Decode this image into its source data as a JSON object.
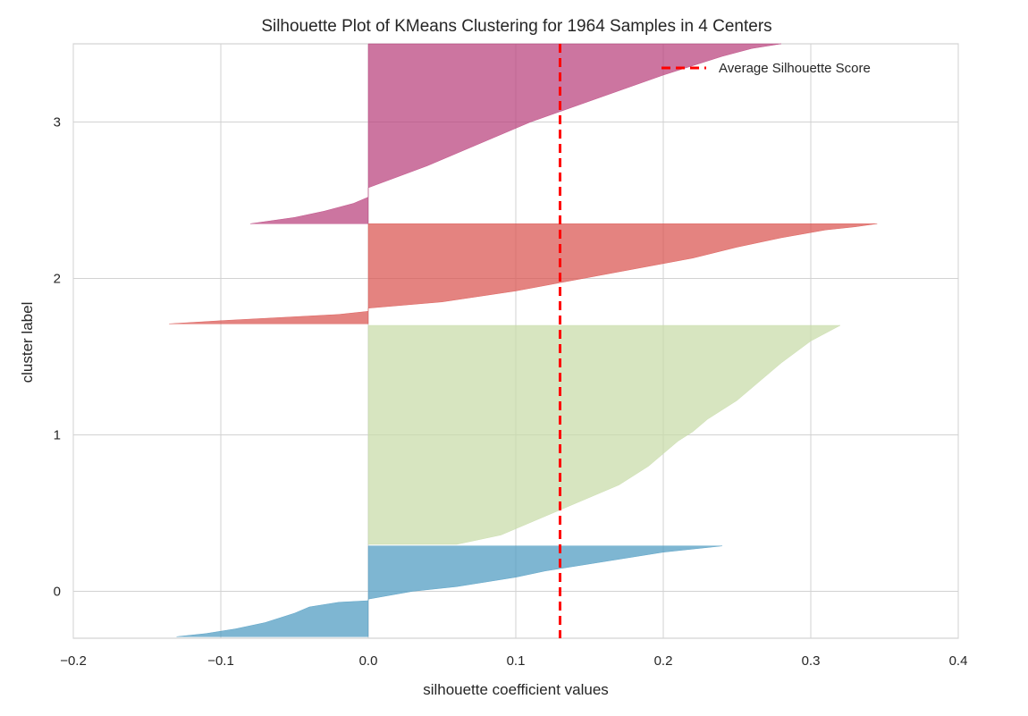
{
  "chart_data": {
    "type": "area",
    "title": "Silhouette Plot of KMeans Clustering for 1964 Samples in 4 Centers",
    "xlabel": "silhouette coefficient values",
    "ylabel": "cluster label",
    "xlim": [
      -0.2,
      0.4
    ],
    "ylim": [
      -0.3,
      3.5
    ],
    "x_ticks": [
      -0.2,
      -0.1,
      0.0,
      0.1,
      0.2,
      0.3,
      0.4
    ],
    "x_tick_labels": [
      "−0.2",
      "−0.1",
      "0.0",
      "0.1",
      "0.2",
      "0.3",
      "0.4"
    ],
    "y_ticks": [
      0,
      1,
      2,
      3
    ],
    "y_tick_labels": [
      "0",
      "1",
      "2",
      "3"
    ],
    "grid": true,
    "legend_position": "top-right",
    "average_silhouette_score": 0.13,
    "average_line": {
      "label": "Average Silhouette Score",
      "color": "#ff0000"
    },
    "series": [
      {
        "name": "0",
        "color": "#4c9ac0",
        "y_range": [
          -0.29,
          0.29
        ],
        "profile_x": [
          -0.13,
          -0.11,
          -0.09,
          -0.07,
          -0.05,
          -0.04,
          -0.02,
          0.0,
          0.0,
          0.03,
          0.06,
          0.08,
          0.1,
          0.12,
          0.14,
          0.16,
          0.18,
          0.2,
          0.22,
          0.24
        ],
        "profile_y": [
          -0.29,
          -0.27,
          -0.24,
          -0.2,
          -0.14,
          -0.1,
          -0.07,
          -0.06,
          -0.05,
          0.0,
          0.03,
          0.06,
          0.09,
          0.13,
          0.16,
          0.19,
          0.22,
          0.25,
          0.27,
          0.29
        ]
      },
      {
        "name": "1",
        "color": "#c7dba8",
        "y_range": [
          0.3,
          1.7
        ],
        "profile_x": [
          0.06,
          0.09,
          0.11,
          0.13,
          0.15,
          0.17,
          0.18,
          0.19,
          0.2,
          0.21,
          0.22,
          0.23,
          0.24,
          0.25,
          0.26,
          0.27,
          0.28,
          0.29,
          0.3,
          0.32
        ],
        "profile_y": [
          0.3,
          0.36,
          0.44,
          0.52,
          0.6,
          0.68,
          0.74,
          0.8,
          0.88,
          0.96,
          1.02,
          1.1,
          1.16,
          1.22,
          1.3,
          1.38,
          1.46,
          1.53,
          1.6,
          1.7
        ]
      },
      {
        "name": "2",
        "color": "#d9534f",
        "y_range": [
          1.71,
          2.35
        ],
        "profile_x": [
          -0.135,
          -0.1,
          -0.06,
          -0.02,
          0.0,
          0.0,
          0.05,
          0.1,
          0.14,
          0.18,
          0.22,
          0.25,
          0.28,
          0.31,
          0.33,
          0.345
        ],
        "profile_y": [
          1.71,
          1.73,
          1.75,
          1.77,
          1.79,
          1.81,
          1.85,
          1.92,
          1.99,
          2.06,
          2.13,
          2.2,
          2.26,
          2.31,
          2.33,
          2.35
        ]
      },
      {
        "name": "3",
        "color": "#b9407c",
        "y_range": [
          2.35,
          3.5
        ],
        "profile_x": [
          -0.08,
          -0.05,
          -0.03,
          -0.01,
          0.0,
          0.0,
          0.04,
          0.08,
          0.11,
          0.14,
          0.17,
          0.2,
          0.22,
          0.24,
          0.26,
          0.28
        ],
        "profile_y": [
          2.35,
          2.39,
          2.43,
          2.48,
          2.52,
          2.58,
          2.72,
          2.88,
          3.0,
          3.1,
          3.2,
          3.3,
          3.36,
          3.42,
          3.47,
          3.5
        ]
      }
    ]
  }
}
